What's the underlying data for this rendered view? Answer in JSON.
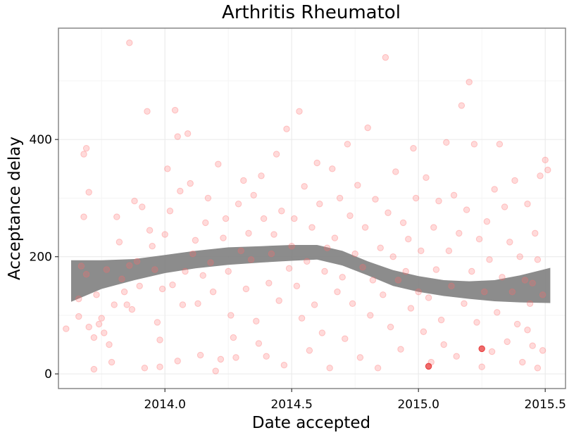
{
  "chart_data": {
    "type": "scatter",
    "title": "Arthritis Rheumatol",
    "xlabel": "Date accepted",
    "ylabel": "Acceptance delay",
    "xlim": [
      2013.58,
      2015.58
    ],
    "ylim": [
      -25,
      590
    ],
    "x_ticks": [
      2014.0,
      2014.5,
      2015.0,
      2015.5
    ],
    "x_tick_labels": [
      "2014.0",
      "2014.5",
      "2015.0",
      "2015.5"
    ],
    "y_ticks": [
      0,
      200,
      400
    ],
    "y_tick_labels": [
      "0",
      "200",
      "400"
    ],
    "grid": true,
    "legend": "none",
    "colors": {
      "points": "#ff6b6b",
      "points_highlight": "#e83a3a",
      "band": "#808080",
      "grid": "#ebebeb",
      "frame": "#7f7f7f"
    },
    "series": [
      {
        "type": "scatter",
        "points": [
          [
            2013.61,
            77
          ],
          [
            2013.66,
            128
          ],
          [
            2013.66,
            98
          ],
          [
            2013.67,
            184
          ],
          [
            2013.68,
            375
          ],
          [
            2013.69,
            385
          ],
          [
            2013.68,
            268
          ],
          [
            2013.69,
            170
          ],
          [
            2013.7,
            310
          ],
          [
            2013.7,
            80
          ],
          [
            2013.72,
            62
          ],
          [
            2013.72,
            8
          ],
          [
            2013.73,
            135
          ],
          [
            2013.74,
            85
          ],
          [
            2013.75,
            95
          ],
          [
            2013.76,
            70
          ],
          [
            2013.77,
            178
          ],
          [
            2013.78,
            50
          ],
          [
            2013.79,
            20
          ],
          [
            2013.8,
            118
          ],
          [
            2013.81,
            268
          ],
          [
            2013.82,
            225
          ],
          [
            2013.83,
            162
          ],
          [
            2013.84,
            140
          ],
          [
            2013.85,
            118
          ],
          [
            2013.86,
            565
          ],
          [
            2013.86,
            185
          ],
          [
            2013.87,
            110
          ],
          [
            2013.88,
            295
          ],
          [
            2013.89,
            192
          ],
          [
            2013.9,
            150
          ],
          [
            2013.91,
            285
          ],
          [
            2013.92,
            10
          ],
          [
            2013.93,
            448
          ],
          [
            2013.94,
            245
          ],
          [
            2013.95,
            218
          ],
          [
            2013.96,
            178
          ],
          [
            2013.97,
            88
          ],
          [
            2013.98,
            58
          ],
          [
            2013.98,
            12
          ],
          [
            2013.99,
            145
          ],
          [
            2014.0,
            238
          ],
          [
            2014.01,
            350
          ],
          [
            2014.02,
            278
          ],
          [
            2014.03,
            152
          ],
          [
            2014.04,
            450
          ],
          [
            2014.05,
            22
          ],
          [
            2014.05,
            405
          ],
          [
            2014.06,
            312
          ],
          [
            2014.07,
            118
          ],
          [
            2014.08,
            175
          ],
          [
            2014.09,
            410
          ],
          [
            2014.1,
            325
          ],
          [
            2014.11,
            205
          ],
          [
            2014.12,
            228
          ],
          [
            2014.13,
            120
          ],
          [
            2014.14,
            32
          ],
          [
            2014.15,
            168
          ],
          [
            2014.16,
            258
          ],
          [
            2014.17,
            300
          ],
          [
            2014.18,
            190
          ],
          [
            2014.19,
            140
          ],
          [
            2014.2,
            5
          ],
          [
            2014.21,
            358
          ],
          [
            2014.22,
            25
          ],
          [
            2014.23,
            232
          ],
          [
            2014.24,
            265
          ],
          [
            2014.25,
            175
          ],
          [
            2014.26,
            100
          ],
          [
            2014.27,
            62
          ],
          [
            2014.28,
            28
          ],
          [
            2014.29,
            290
          ],
          [
            2014.3,
            210
          ],
          [
            2014.31,
            330
          ],
          [
            2014.32,
            145
          ],
          [
            2014.33,
            240
          ],
          [
            2014.34,
            195
          ],
          [
            2014.35,
            305
          ],
          [
            2014.36,
            90
          ],
          [
            2014.37,
            52
          ],
          [
            2014.38,
            338
          ],
          [
            2014.39,
            265
          ],
          [
            2014.4,
            30
          ],
          [
            2014.41,
            155
          ],
          [
            2014.42,
            205
          ],
          [
            2014.43,
            238
          ],
          [
            2014.44,
            375
          ],
          [
            2014.45,
            125
          ],
          [
            2014.46,
            278
          ],
          [
            2014.47,
            15
          ],
          [
            2014.48,
            418
          ],
          [
            2014.49,
            180
          ],
          [
            2014.5,
            218
          ],
          [
            2014.51,
            265
          ],
          [
            2014.52,
            150
          ],
          [
            2014.53,
            448
          ],
          [
            2014.54,
            95
          ],
          [
            2014.55,
            320
          ],
          [
            2014.56,
            192
          ],
          [
            2014.57,
            40
          ],
          [
            2014.58,
            250
          ],
          [
            2014.59,
            118
          ],
          [
            2014.6,
            360
          ],
          [
            2014.61,
            290
          ],
          [
            2014.62,
            70
          ],
          [
            2014.63,
            175
          ],
          [
            2014.64,
            215
          ],
          [
            2014.65,
            10
          ],
          [
            2014.66,
            350
          ],
          [
            2014.67,
            232
          ],
          [
            2014.68,
            140
          ],
          [
            2014.69,
            300
          ],
          [
            2014.7,
            165
          ],
          [
            2014.71,
            60
          ],
          [
            2014.72,
            392
          ],
          [
            2014.73,
            270
          ],
          [
            2014.74,
            120
          ],
          [
            2014.75,
            205
          ],
          [
            2014.76,
            322
          ],
          [
            2014.77,
            28
          ],
          [
            2014.78,
            182
          ],
          [
            2014.79,
            250
          ],
          [
            2014.8,
            420
          ],
          [
            2014.81,
            100
          ],
          [
            2014.82,
            160
          ],
          [
            2014.83,
            298
          ],
          [
            2014.84,
            10
          ],
          [
            2014.85,
            215
          ],
          [
            2014.86,
            135
          ],
          [
            2014.87,
            540
          ],
          [
            2014.88,
            275
          ],
          [
            2014.89,
            80
          ],
          [
            2014.9,
            200
          ],
          [
            2014.91,
            345
          ],
          [
            2014.92,
            160
          ],
          [
            2014.93,
            42
          ],
          [
            2014.94,
            258
          ],
          [
            2014.95,
            175
          ],
          [
            2014.96,
            230
          ],
          [
            2014.97,
            112
          ],
          [
            2014.98,
            385
          ],
          [
            2014.99,
            300
          ],
          [
            2015.0,
            140
          ],
          [
            2015.01,
            210
          ],
          [
            2015.02,
            72
          ],
          [
            2015.03,
            335
          ],
          [
            2015.04,
            130
          ],
          [
            2015.05,
            20
          ],
          [
            2015.06,
            250
          ],
          [
            2015.07,
            178
          ],
          [
            2015.08,
            295
          ],
          [
            2015.09,
            92
          ],
          [
            2015.1,
            50
          ],
          [
            2015.11,
            395
          ],
          [
            2015.12,
            210
          ],
          [
            2015.13,
            150
          ],
          [
            2015.14,
            305
          ],
          [
            2015.15,
            30
          ],
          [
            2015.16,
            240
          ],
          [
            2015.17,
            458
          ],
          [
            2015.18,
            120
          ],
          [
            2015.19,
            280
          ],
          [
            2015.2,
            498
          ],
          [
            2015.21,
            175
          ],
          [
            2015.22,
            392
          ],
          [
            2015.23,
            88
          ],
          [
            2015.24,
            230
          ],
          [
            2015.25,
            12
          ],
          [
            2015.26,
            140
          ],
          [
            2015.27,
            260
          ],
          [
            2015.28,
            195
          ],
          [
            2015.29,
            38
          ],
          [
            2015.3,
            315
          ],
          [
            2015.31,
            105
          ],
          [
            2015.32,
            392
          ],
          [
            2015.33,
            165
          ],
          [
            2015.34,
            285
          ],
          [
            2015.35,
            55
          ],
          [
            2015.36,
            225
          ],
          [
            2015.37,
            140
          ],
          [
            2015.38,
            330
          ],
          [
            2015.39,
            85
          ],
          [
            2015.4,
            200
          ],
          [
            2015.41,
            20
          ],
          [
            2015.42,
            160
          ],
          [
            2015.43,
            290
          ],
          [
            2015.44,
            120
          ],
          [
            2015.45,
            48
          ],
          [
            2015.46,
            240
          ],
          [
            2015.47,
            195
          ],
          [
            2015.48,
            338
          ],
          [
            2015.49,
            135
          ],
          [
            2015.5,
            365
          ],
          [
            2015.51,
            348
          ],
          [
            2015.49,
            40
          ],
          [
            2015.47,
            10
          ],
          [
            2015.45,
            155
          ],
          [
            2015.43,
            75
          ]
        ]
      },
      {
        "type": "scatter-highlight",
        "points": [
          [
            2015.04,
            13
          ],
          [
            2015.25,
            43
          ]
        ]
      },
      {
        "type": "ribbon",
        "x": [
          2013.63,
          2013.75,
          2013.88,
          2014.0,
          2014.12,
          2014.25,
          2014.38,
          2014.5,
          2014.6,
          2014.7,
          2014.8,
          2014.9,
          2015.0,
          2015.1,
          2015.2,
          2015.3,
          2015.4,
          2015.52
        ],
        "lower": [
          123,
          145,
          160,
          172,
          180,
          186,
          190,
          193,
          195,
          185,
          168,
          150,
          140,
          133,
          128,
          124,
          122,
          121
        ],
        "upper": [
          194,
          194,
          196,
          203,
          210,
          216,
          218,
          220,
          220,
          210,
          192,
          177,
          167,
          160,
          158,
          160,
          168,
          181
        ]
      }
    ]
  }
}
